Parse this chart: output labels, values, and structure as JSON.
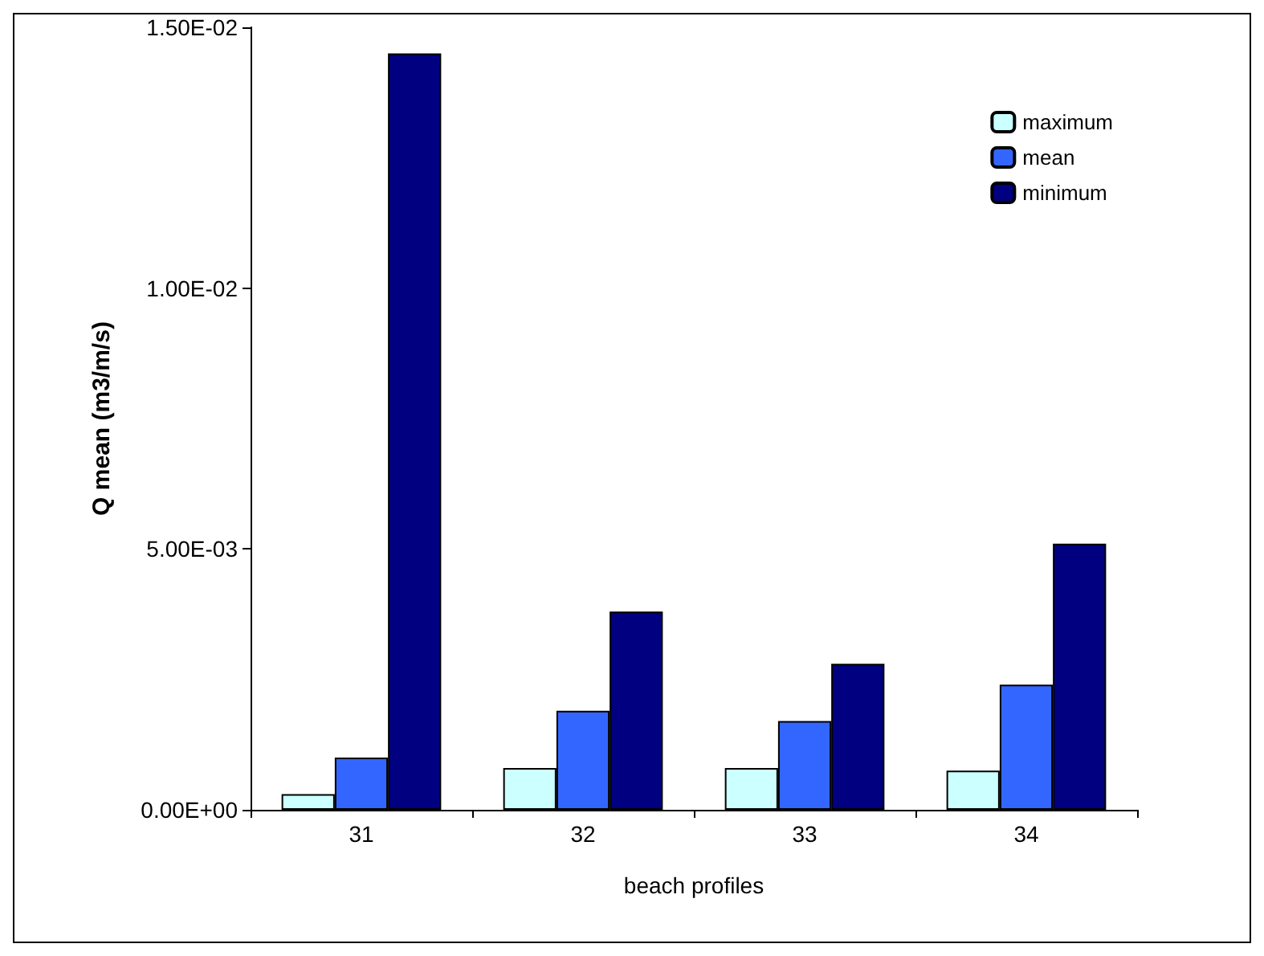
{
  "chart_data": {
    "type": "bar",
    "xlabel": "beach profiles",
    "ylabel": "Q mean (m3/m/s)",
    "categories": [
      "31",
      "32",
      "33",
      "34"
    ],
    "series": [
      {
        "name": "maximum",
        "color": "#ccffff",
        "values": [
          0.0003,
          0.0008,
          0.0008,
          0.00075
        ]
      },
      {
        "name": "mean",
        "color": "#3366ff",
        "values": [
          0.001,
          0.0019,
          0.0017,
          0.0024
        ]
      },
      {
        "name": "minimum",
        "color": "#000080",
        "values": [
          0.0145,
          0.0038,
          0.0028,
          0.0051
        ]
      }
    ],
    "ylim": [
      0,
      0.015
    ],
    "yticks": [
      {
        "value": 0,
        "label": "0.00E+00"
      },
      {
        "value": 0.005,
        "label": "5.00E-03"
      },
      {
        "value": 0.01,
        "label": "1.00E-02"
      },
      {
        "value": 0.015,
        "label": "1.50E-02"
      }
    ],
    "grid": false,
    "legend": "top right"
  }
}
